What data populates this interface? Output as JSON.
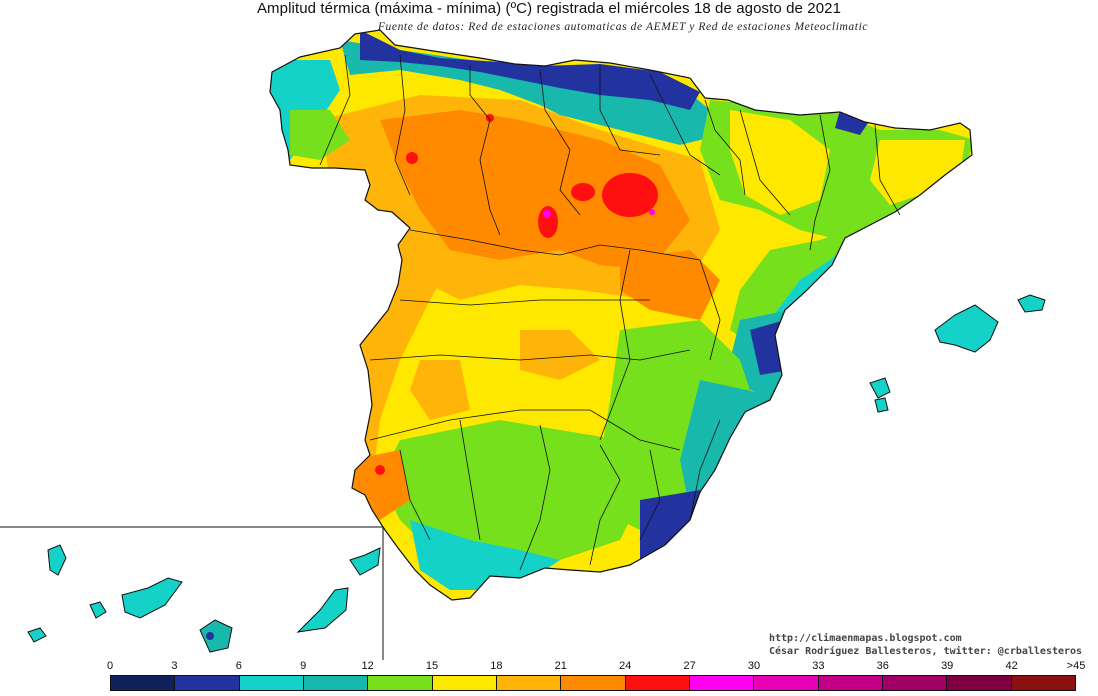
{
  "map": {
    "title": "Amplitud térmica (máxima - mínima) (ºC) registrada el miércoles 18 de agosto de 2021",
    "source": "Fuente de datos: Red de estaciones automaticas de AEMET y Red de estaciones Meteoclimatic",
    "credit_url": "http://climaenmapas.blogspot.com",
    "credit_author": "César Rodríguez Ballesteros, twitter: @crballesteros"
  },
  "legend": {
    "labels": [
      "0",
      "3",
      "6",
      "9",
      "12",
      "15",
      "18",
      "21",
      "24",
      "27",
      "30",
      "33",
      "36",
      "39",
      "42",
      ">45"
    ],
    "colors": [
      "#10205a",
      "#2233a0",
      "#15d2c8",
      "#19b8ac",
      "#77e01c",
      "#ffe800",
      "#ffb40a",
      "#ff8a00",
      "#ff1010",
      "#ff00f2",
      "#e800b4",
      "#c20088",
      "#a00066",
      "#7e0042",
      "#8b1010"
    ]
  }
}
